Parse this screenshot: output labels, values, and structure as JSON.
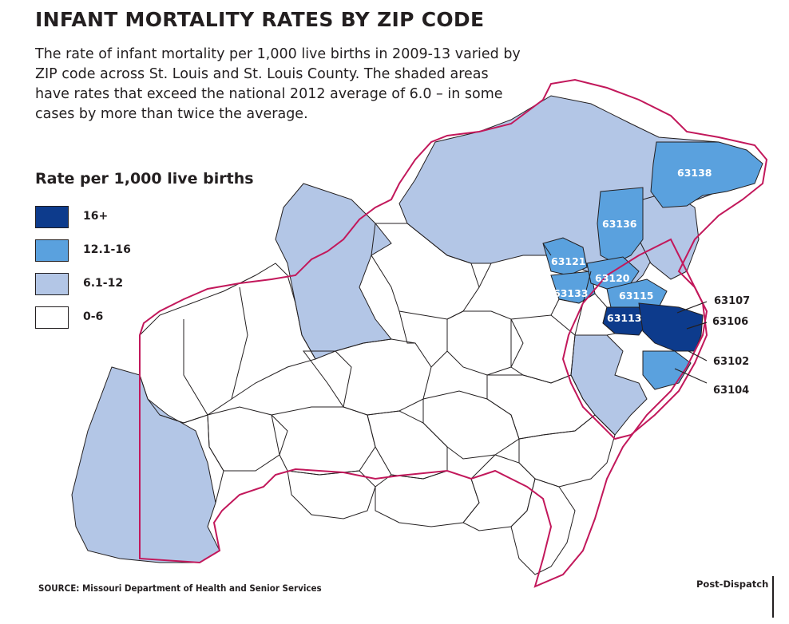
{
  "title": "INFANT MORTALITY RATES BY ZIP CODE",
  "description": "The rate of infant mortality per 1,000 live births in 2009-13 varied by ZIP code across St. Louis and St. Louis County. The shaded areas have rates that exceed the national 2012 average of 6.0 – in some cases by more than twice the average.",
  "legend": {
    "title": "Rate per 1,000 live births",
    "items": [
      {
        "label": "16+",
        "color": "#0d3b8c"
      },
      {
        "label": "12.1-16",
        "color": "#5aa1de"
      },
      {
        "label": "6.1-12",
        "color": "#b3c6e6"
      },
      {
        "label": "0-6",
        "color": "#ffffff"
      }
    ]
  },
  "zip_labels": {
    "z63138": "63138",
    "z63136": "63136",
    "z63121": "63121",
    "z63120": "63120",
    "z63133": "63133",
    "z63115": "63115",
    "z63113": "63113",
    "z63107": "63107",
    "z63106": "63106",
    "z63102": "63102",
    "z63104": "63104"
  },
  "colors": {
    "county_boundary": "#c2185b",
    "zip_lines": "#231f20"
  },
  "source": "SOURCE: Missouri Department of Health and Senior Services",
  "credit": "Post-Dispatch"
}
